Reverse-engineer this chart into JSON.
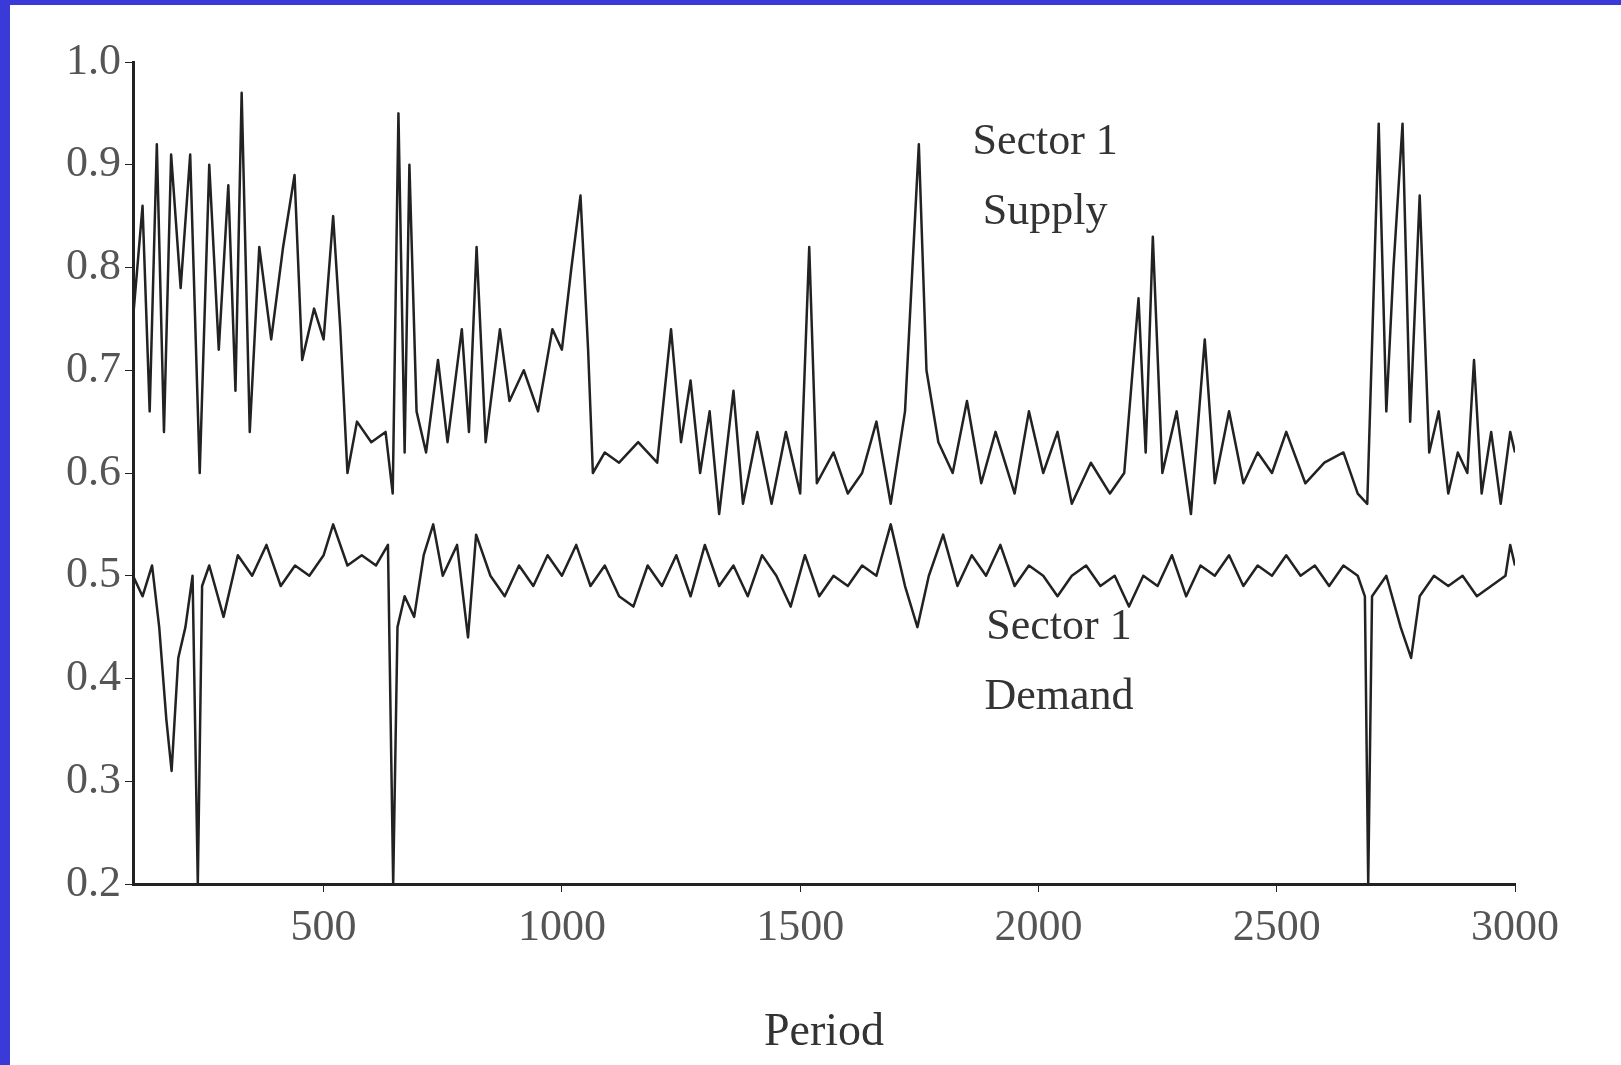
{
  "chart_data": {
    "type": "line",
    "xlabel": "Period",
    "xlim": [
      100,
      3000
    ],
    "xticks": [
      500,
      1000,
      1500,
      2000,
      2500,
      3000
    ],
    "ylim": [
      0.2,
      1.0
    ],
    "yticks": [
      0.2,
      0.3,
      0.4,
      0.5,
      0.6,
      0.7,
      0.8,
      0.9,
      {
        "value": 1.0,
        "label": "1.0"
      }
    ],
    "grid": false,
    "legend": false,
    "marker": "none",
    "line_style": "solid",
    "series": [
      {
        "name": "Sector 1 Supply",
        "color": "#222222",
        "x": [
          100,
          120,
          135,
          150,
          165,
          180,
          200,
          220,
          240,
          260,
          280,
          300,
          315,
          328,
          345,
          365,
          390,
          415,
          439,
          455,
          480,
          500,
          520,
          535,
          550,
          570,
          600,
          630,
          645,
          657,
          670,
          680,
          695,
          715,
          740,
          760,
          790,
          805,
          821,
          840,
          870,
          890,
          920,
          950,
          980,
          1000,
          1020,
          1039,
          1055,
          1065,
          1090,
          1120,
          1160,
          1200,
          1229,
          1250,
          1270,
          1290,
          1310,
          1330,
          1360,
          1380,
          1410,
          1440,
          1470,
          1500,
          1519,
          1535,
          1570,
          1600,
          1630,
          1660,
          1690,
          1720,
          1749,
          1765,
          1790,
          1820,
          1850,
          1880,
          1910,
          1950,
          1980,
          2010,
          2040,
          2070,
          2110,
          2150,
          2180,
          2210,
          2225,
          2240,
          2260,
          2290,
          2320,
          2349,
          2370,
          2400,
          2430,
          2460,
          2490,
          2520,
          2560,
          2600,
          2640,
          2670,
          2690,
          2714,
          2730,
          2745,
          2764,
          2780,
          2800,
          2820,
          2840,
          2860,
          2880,
          2900,
          2914,
          2930,
          2950,
          2970,
          2990,
          3000
        ],
        "values": [
          0.75,
          0.86,
          0.66,
          0.92,
          0.64,
          0.91,
          0.78,
          0.91,
          0.6,
          0.9,
          0.72,
          0.88,
          0.68,
          0.97,
          0.64,
          0.82,
          0.73,
          0.82,
          0.89,
          0.71,
          0.76,
          0.73,
          0.85,
          0.74,
          0.6,
          0.65,
          0.63,
          0.64,
          0.58,
          0.95,
          0.62,
          0.9,
          0.66,
          0.62,
          0.71,
          0.63,
          0.74,
          0.64,
          0.82,
          0.63,
          0.74,
          0.67,
          0.7,
          0.66,
          0.74,
          0.72,
          0.8,
          0.87,
          0.72,
          0.6,
          0.62,
          0.61,
          0.63,
          0.61,
          0.74,
          0.63,
          0.69,
          0.6,
          0.66,
          0.56,
          0.68,
          0.57,
          0.64,
          0.57,
          0.64,
          0.58,
          0.82,
          0.59,
          0.62,
          0.58,
          0.6,
          0.65,
          0.57,
          0.66,
          0.92,
          0.7,
          0.63,
          0.6,
          0.67,
          0.59,
          0.64,
          0.58,
          0.66,
          0.6,
          0.64,
          0.57,
          0.61,
          0.58,
          0.6,
          0.77,
          0.62,
          0.83,
          0.6,
          0.66,
          0.56,
          0.73,
          0.59,
          0.66,
          0.59,
          0.62,
          0.6,
          0.64,
          0.59,
          0.61,
          0.62,
          0.58,
          0.57,
          0.94,
          0.66,
          0.8,
          0.94,
          0.65,
          0.87,
          0.62,
          0.66,
          0.58,
          0.62,
          0.6,
          0.71,
          0.58,
          0.64,
          0.57,
          0.64,
          0.62
        ]
      },
      {
        "name": "Sector 1 Demand",
        "color": "#222222",
        "x": [
          100,
          120,
          140,
          155,
          170,
          181,
          195,
          210,
          225,
          236,
          245,
          260,
          290,
          320,
          350,
          380,
          410,
          440,
          470,
          500,
          520,
          550,
          580,
          610,
          635,
          646,
          655,
          670,
          690,
          710,
          730,
          750,
          780,
          803,
          820,
          850,
          880,
          910,
          940,
          970,
          1000,
          1030,
          1060,
          1090,
          1120,
          1150,
          1180,
          1210,
          1240,
          1270,
          1300,
          1330,
          1360,
          1390,
          1420,
          1450,
          1480,
          1510,
          1540,
          1570,
          1600,
          1630,
          1660,
          1690,
          1720,
          1746,
          1770,
          1800,
          1830,
          1860,
          1890,
          1920,
          1950,
          1980,
          2010,
          2040,
          2070,
          2100,
          2130,
          2160,
          2190,
          2220,
          2250,
          2280,
          2310,
          2340,
          2370,
          2400,
          2430,
          2460,
          2490,
          2520,
          2550,
          2580,
          2610,
          2640,
          2670,
          2685,
          2692,
          2700,
          2730,
          2760,
          2782,
          2800,
          2830,
          2860,
          2890,
          2920,
          2950,
          2980,
          2990,
          3000
        ],
        "values": [
          0.5,
          0.48,
          0.51,
          0.45,
          0.36,
          0.31,
          0.42,
          0.45,
          0.5,
          0.2,
          0.49,
          0.51,
          0.46,
          0.52,
          0.5,
          0.53,
          0.49,
          0.51,
          0.5,
          0.52,
          0.55,
          0.51,
          0.52,
          0.51,
          0.53,
          0.2,
          0.45,
          0.48,
          0.46,
          0.52,
          0.55,
          0.5,
          0.53,
          0.44,
          0.54,
          0.5,
          0.48,
          0.51,
          0.49,
          0.52,
          0.5,
          0.53,
          0.49,
          0.51,
          0.48,
          0.47,
          0.51,
          0.49,
          0.52,
          0.48,
          0.53,
          0.49,
          0.51,
          0.48,
          0.52,
          0.5,
          0.47,
          0.52,
          0.48,
          0.5,
          0.49,
          0.51,
          0.5,
          0.55,
          0.49,
          0.45,
          0.5,
          0.54,
          0.49,
          0.52,
          0.5,
          0.53,
          0.49,
          0.51,
          0.5,
          0.48,
          0.5,
          0.51,
          0.49,
          0.5,
          0.47,
          0.5,
          0.49,
          0.52,
          0.48,
          0.51,
          0.5,
          0.52,
          0.49,
          0.51,
          0.5,
          0.52,
          0.5,
          0.51,
          0.49,
          0.51,
          0.5,
          0.48,
          0.2,
          0.48,
          0.5,
          0.45,
          0.42,
          0.48,
          0.5,
          0.49,
          0.5,
          0.48,
          0.49,
          0.5,
          0.53,
          0.51
        ]
      }
    ]
  }
}
